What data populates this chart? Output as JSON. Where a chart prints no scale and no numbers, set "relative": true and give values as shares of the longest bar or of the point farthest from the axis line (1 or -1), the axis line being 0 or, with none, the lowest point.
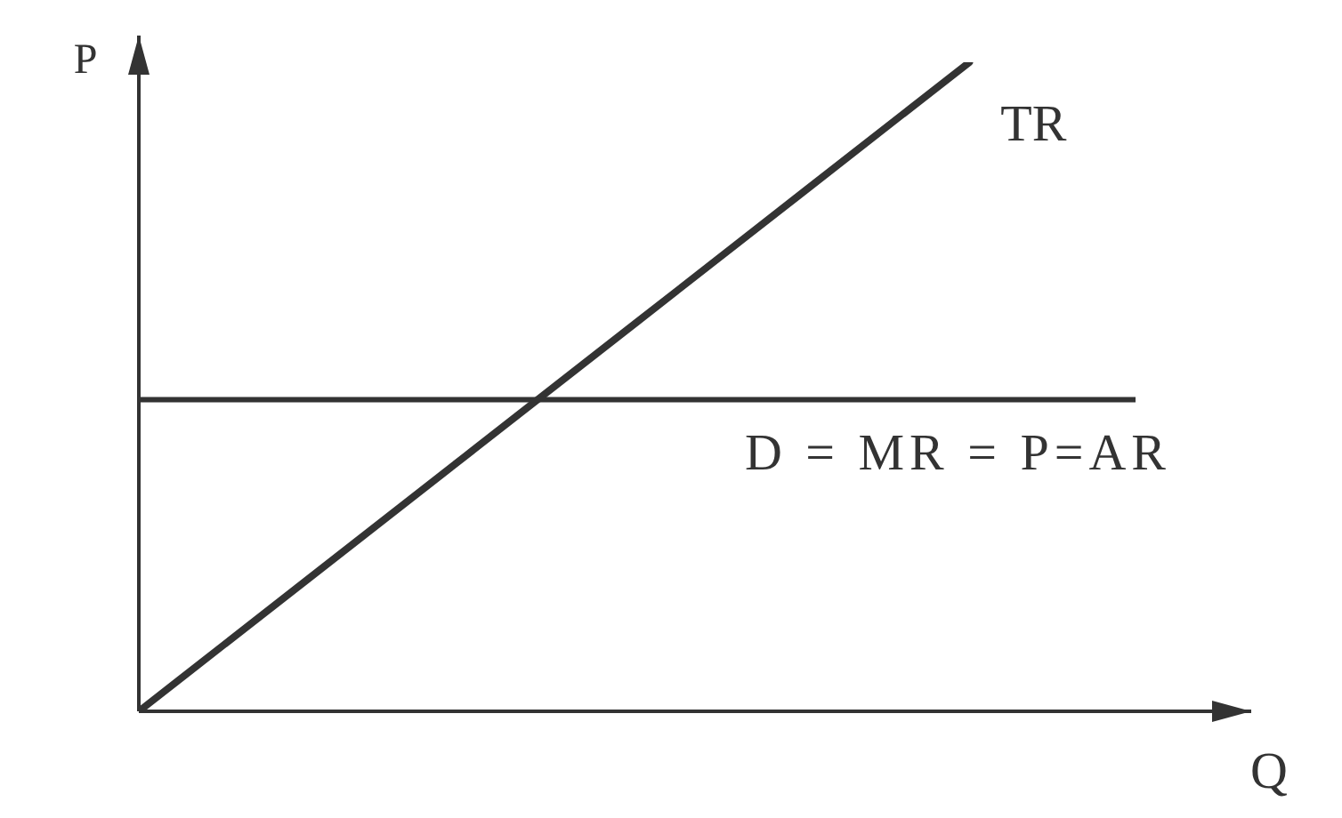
{
  "chart_data": {
    "type": "line",
    "relative": true,
    "xlabel": "Q",
    "ylabel": "P",
    "categories": [
      null,
      null,
      null,
      null,
      null,
      null,
      null
    ],
    "series": [
      {
        "name": "TR",
        "color": "#333333",
        "values": [
          0,
          0.2,
          0.4,
          0.6,
          0.8,
          1,
          null
        ]
      },
      {
        "name": "D = MR = P=AR",
        "color": "#333333",
        "values": [
          0.48,
          0.48,
          0.48,
          0.48,
          0.48,
          0.48,
          0.48
        ]
      }
    ]
  }
}
